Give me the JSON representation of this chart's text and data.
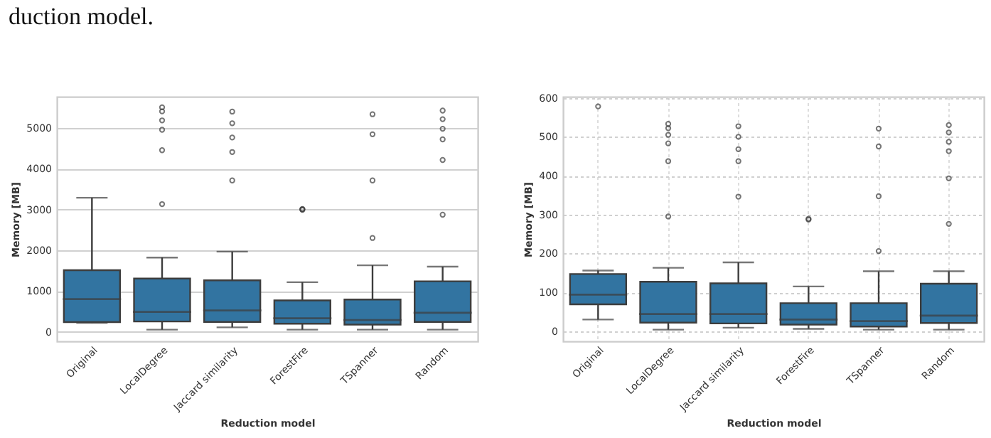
{
  "chart_data": [
    {
      "type": "box",
      "annotations": [
        "duction model."
      ],
      "xlabel": "Reduction model",
      "ylabel": "Memory [MB]",
      "categories": [
        "Original",
        "LocalDegree",
        "Jaccard similarity",
        "ForestFire",
        "TSpanner",
        "Random"
      ],
      "color": "#3274a1",
      "ylim": [
        -230,
        5760
      ],
      "yticks": [
        0,
        1000,
        2000,
        3000,
        4000,
        5000
      ],
      "grid": "y",
      "boxes": [
        {
          "low": 220,
          "q1": 240,
          "median": 805,
          "q3": 1510,
          "high": 3285
        },
        {
          "low": 55,
          "q1": 255,
          "median": 490,
          "q3": 1307,
          "high": 1820,
          "outliers": [
            3130,
            4450,
            4950,
            5180,
            5400,
            5500
          ]
        },
        {
          "low": 112,
          "q1": 245,
          "median": 525,
          "q3": 1262,
          "high": 1966,
          "outliers": [
            3710,
            4405,
            4760,
            5110,
            5395
          ]
        },
        {
          "low": 56,
          "q1": 200,
          "median": 335,
          "q3": 770,
          "high": 1218,
          "outliers": [
            2990,
            3000,
            3010
          ]
        },
        {
          "low": 56,
          "q1": 180,
          "median": 290,
          "q3": 793,
          "high": 1631,
          "outliers": [
            2300,
            3710,
            4840,
            5330
          ]
        },
        {
          "low": 56,
          "q1": 245,
          "median": 470,
          "q3": 1240,
          "high": 1598,
          "outliers": [
            2870,
            4210,
            4715,
            4975,
            5210,
            5420
          ]
        }
      ]
    },
    {
      "type": "box",
      "xlabel": "Reduction model",
      "ylabel": "Memory [MB]",
      "categories": [
        "Original",
        "LocalDegree",
        "Jaccard similarity",
        "ForestFire",
        "TSpanner",
        "Random"
      ],
      "color": "#3274a1",
      "ylim": [
        -26,
        603
      ],
      "yticks": [
        0,
        100,
        200,
        300,
        400,
        500,
        600
      ],
      "grid": true,
      "boxes": [
        {
          "low": 30,
          "q1": 69,
          "median": 94,
          "q3": 147,
          "high": 156,
          "outliers": [
            578
          ]
        },
        {
          "low": 4,
          "q1": 22,
          "median": 44,
          "q3": 127,
          "high": 163,
          "outliers": [
            295,
            437,
            483,
            505,
            522,
            533
          ]
        },
        {
          "low": 9,
          "q1": 20,
          "median": 44,
          "q3": 123,
          "high": 177,
          "outliers": [
            346,
            437,
            468,
            500,
            527
          ]
        },
        {
          "low": 6,
          "q1": 17,
          "median": 30,
          "q3": 72,
          "high": 115,
          "outliers": [
            287,
            289
          ]
        },
        {
          "low": 4,
          "q1": 12,
          "median": 26,
          "q3": 72,
          "high": 154,
          "outliers": [
            206,
            347,
            475,
            521
          ]
        },
        {
          "low": 4,
          "q1": 21,
          "median": 40,
          "q3": 122,
          "high": 154,
          "outliers": [
            276,
            393,
            463,
            487,
            511,
            530
          ]
        }
      ]
    }
  ]
}
